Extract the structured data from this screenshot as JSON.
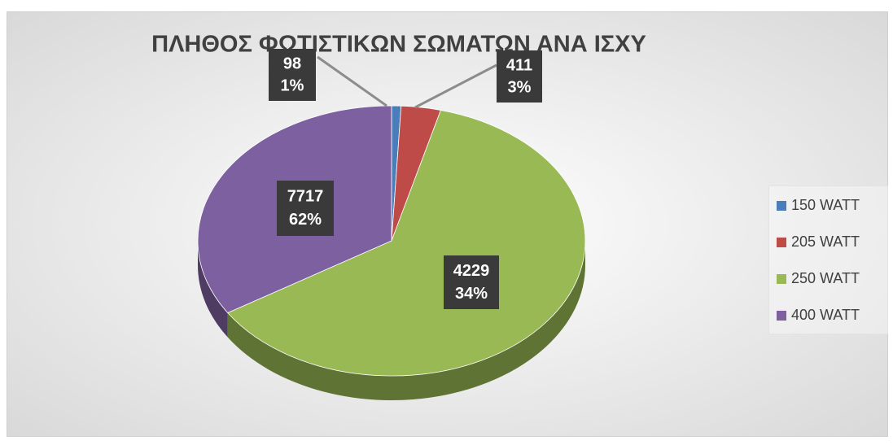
{
  "chart_data": {
    "type": "pie",
    "title": "ΠΛΗΘΟΣ ΦΩΤΙΣΤΙΚΩΝ ΣΩΜΑΤΩΝ ΑΝΑ ΙΣΧΥ",
    "categories": [
      "150 WATT",
      "205 WATT",
      "250 WATT",
      "400 WATT"
    ],
    "values": [
      98,
      411,
      7717,
      4229
    ],
    "percent_labels": [
      "1%",
      "3%",
      "62%",
      "34%"
    ],
    "colors": [
      "#4a7ebb",
      "#be4b48",
      "#98b954",
      "#7d60a0"
    ],
    "legend": "right"
  }
}
